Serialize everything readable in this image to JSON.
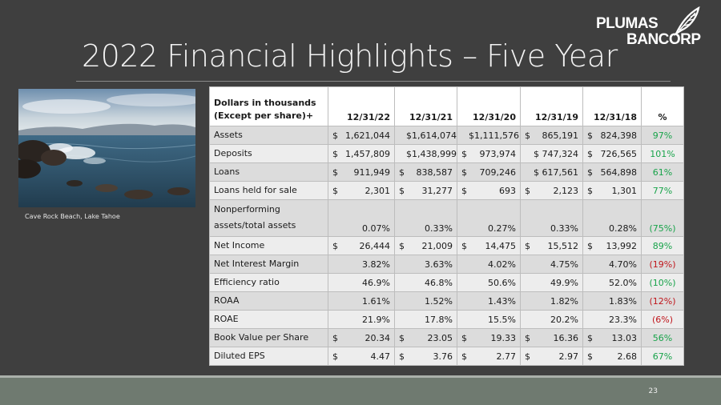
{
  "slide": {
    "title": "2022 Financial Highlights – Five Year",
    "logo_line1": "PLUMAS",
    "logo_line2": "BANCORP",
    "photo_caption": "Cave Rock Beach, Lake Tahoe",
    "page_number": "23"
  },
  "table": {
    "header_label_line1": "Dollars in thousands",
    "header_label_line2": "(Except per share)+",
    "years": [
      "12/31/22",
      "12/31/21",
      "12/31/20",
      "12/31/19",
      "12/31/18"
    ],
    "pct_header": "%",
    "rows": [
      {
        "label": "Assets",
        "values": [
          [
            "$",
            "1,621,044"
          ],
          [
            "",
            "$1,614,074"
          ],
          [
            "",
            "$1,111,576"
          ],
          [
            "$",
            "865,191"
          ],
          [
            "$",
            "824,398"
          ]
        ],
        "change": "97%",
        "sign": "pos"
      },
      {
        "label": "Deposits",
        "values": [
          [
            "$",
            "1,457,809"
          ],
          [
            "",
            "$1,438,999"
          ],
          [
            "$",
            "973,974"
          ],
          [
            "",
            "$ 747,324"
          ],
          [
            "$",
            "726,565"
          ]
        ],
        "change": "101%",
        "sign": "pos"
      },
      {
        "label": "Loans",
        "values": [
          [
            "$",
            "911,949"
          ],
          [
            "$",
            "838,587"
          ],
          [
            "$",
            "709,246"
          ],
          [
            "",
            "$ 617,561"
          ],
          [
            "$",
            "564,898"
          ]
        ],
        "change": "61%",
        "sign": "pos"
      },
      {
        "label": "Loans held for sale",
        "values": [
          [
            "$",
            "2,301"
          ],
          [
            "$",
            "31,277"
          ],
          [
            "$",
            "693"
          ],
          [
            "$",
            "2,123"
          ],
          [
            "$",
            "1,301"
          ]
        ],
        "change": "77%",
        "sign": "pos"
      },
      {
        "label_line1": "Nonperforming",
        "label_line2": "assets/total assets",
        "values": [
          [
            "",
            "0.07%"
          ],
          [
            "",
            "0.33%"
          ],
          [
            "",
            "0.27%"
          ],
          [
            "",
            "0.33%"
          ],
          [
            "",
            "0.28%"
          ]
        ],
        "change": "(75%)",
        "sign": "pos"
      },
      {
        "label": "Net Income",
        "values": [
          [
            "$",
            "26,444"
          ],
          [
            "$",
            "21,009"
          ],
          [
            "$",
            "14,475"
          ],
          [
            "$",
            "15,512"
          ],
          [
            "$",
            "13,992"
          ]
        ],
        "change": "89%",
        "sign": "pos"
      },
      {
        "label": "Net Interest Margin",
        "values": [
          [
            "",
            "3.82%"
          ],
          [
            "",
            "3.63%"
          ],
          [
            "",
            "4.02%"
          ],
          [
            "",
            "4.75%"
          ],
          [
            "",
            "4.70%"
          ]
        ],
        "change": "(19%)",
        "sign": "neg"
      },
      {
        "label": "Efficiency ratio",
        "values": [
          [
            "",
            "46.9%"
          ],
          [
            "",
            "46.8%"
          ],
          [
            "",
            "50.6%"
          ],
          [
            "",
            "49.9%"
          ],
          [
            "",
            "52.0%"
          ]
        ],
        "change": "(10%)",
        "sign": "pos"
      },
      {
        "label": "ROAA",
        "values": [
          [
            "",
            "1.61%"
          ],
          [
            "",
            "1.52%"
          ],
          [
            "",
            "1.43%"
          ],
          [
            "",
            "1.82%"
          ],
          [
            "",
            "1.83%"
          ]
        ],
        "change": "(12%)",
        "sign": "neg"
      },
      {
        "label": "ROAE",
        "values": [
          [
            "",
            "21.9%"
          ],
          [
            "",
            "17.8%"
          ],
          [
            "",
            "15.5%"
          ],
          [
            "",
            "20.2%"
          ],
          [
            "",
            "23.3%"
          ]
        ],
        "change": "(6%)",
        "sign": "neg"
      },
      {
        "label": "Book Value per Share",
        "values": [
          [
            "$",
            "20.34"
          ],
          [
            "$",
            "23.05"
          ],
          [
            "$",
            "19.33"
          ],
          [
            "$",
            "16.36"
          ],
          [
            "$",
            "13.03"
          ]
        ],
        "change": "56%",
        "sign": "pos"
      },
      {
        "label": "Diluted EPS",
        "values": [
          [
            "$",
            "4.47"
          ],
          [
            "$",
            "3.76"
          ],
          [
            "$",
            "2.77"
          ],
          [
            "$",
            "2.97"
          ],
          [
            "$",
            "2.68"
          ]
        ],
        "change": "67%",
        "sign": "pos"
      }
    ]
  },
  "colors": {
    "positive": "#18a34a",
    "negative": "#c0161c"
  }
}
